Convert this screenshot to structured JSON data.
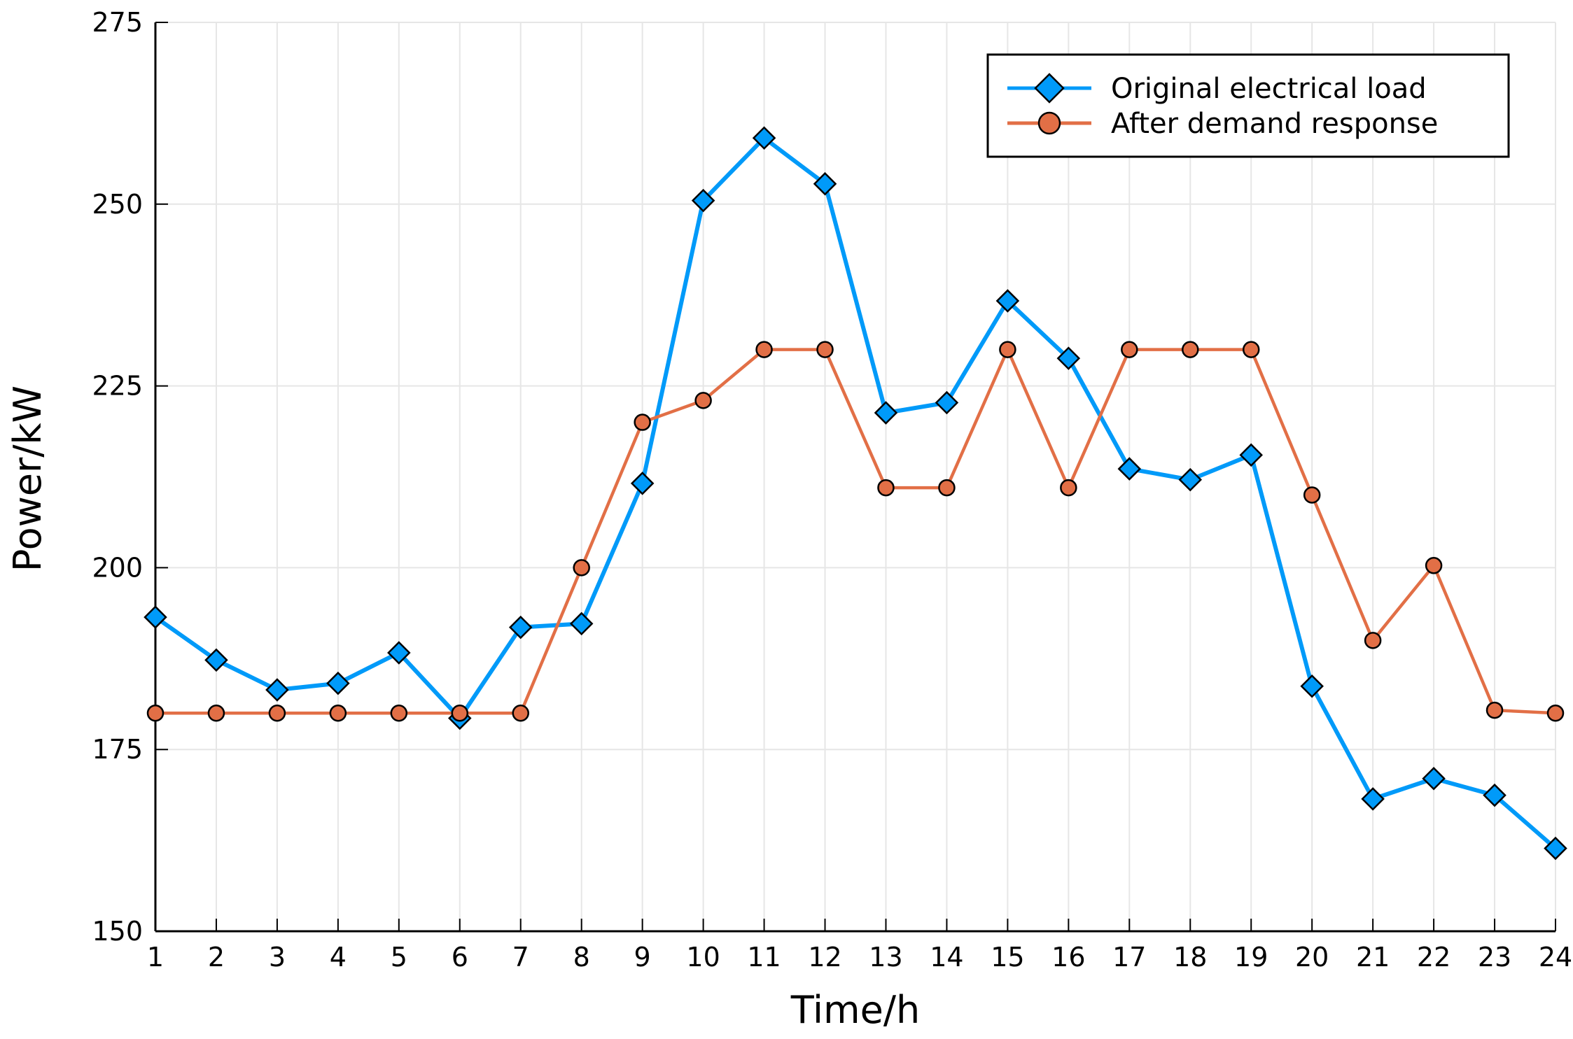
{
  "chart_data": {
    "type": "line",
    "xlabel": "Time/h",
    "ylabel": "Power/kW",
    "xlim": [
      1,
      24
    ],
    "ylim": [
      150,
      275
    ],
    "xticks": [
      1,
      2,
      3,
      4,
      5,
      6,
      7,
      8,
      9,
      10,
      11,
      12,
      13,
      14,
      15,
      16,
      17,
      18,
      19,
      20,
      21,
      22,
      23,
      24
    ],
    "yticks": [
      150,
      175,
      200,
      225,
      250,
      275
    ],
    "grid": true,
    "legend_position": "top-right",
    "x": [
      1,
      2,
      3,
      4,
      5,
      6,
      7,
      8,
      9,
      10,
      11,
      12,
      13,
      14,
      15,
      16,
      17,
      18,
      19,
      20,
      21,
      22,
      23,
      24
    ],
    "series": [
      {
        "name": "Original electrical load",
        "color": "#009AF9",
        "marker": "diamond",
        "values": [
          193.2,
          187.3,
          183.2,
          184.1,
          188.3,
          179.3,
          191.8,
          192.3,
          211.6,
          250.5,
          259.1,
          252.8,
          221.3,
          222.7,
          236.7,
          228.8,
          213.6,
          212.1,
          215.5,
          183.7,
          168.2,
          171.0,
          168.7,
          161.4
        ]
      },
      {
        "name": "After demand response",
        "color": "#E26F46",
        "marker": "circle",
        "values": [
          180,
          180,
          180,
          180,
          180,
          180,
          180,
          200,
          220,
          223,
          230,
          230,
          211,
          211,
          230,
          211,
          230,
          230,
          230,
          210,
          190,
          200.3,
          180.4,
          180
        ]
      }
    ]
  }
}
